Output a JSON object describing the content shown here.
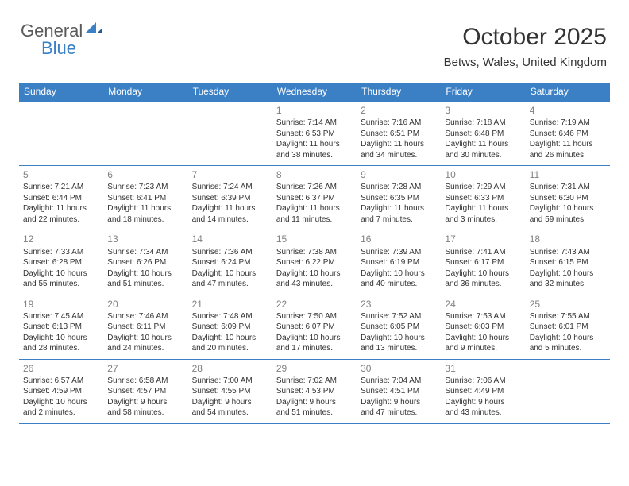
{
  "logo": {
    "word1": "General",
    "word2": "Blue"
  },
  "header": {
    "title": "October 2025",
    "location": "Betws, Wales, United Kingdom"
  },
  "calendar": {
    "header_bg": "#3b7fc4",
    "border_color": "#3b7fc4",
    "day_headers": [
      "Sunday",
      "Monday",
      "Tuesday",
      "Wednesday",
      "Thursday",
      "Friday",
      "Saturday"
    ],
    "weeks": [
      [
        null,
        null,
        null,
        {
          "num": "1",
          "sunrise": "Sunrise: 7:14 AM",
          "sunset": "Sunset: 6:53 PM",
          "day1": "Daylight: 11 hours",
          "day2": "and 38 minutes."
        },
        {
          "num": "2",
          "sunrise": "Sunrise: 7:16 AM",
          "sunset": "Sunset: 6:51 PM",
          "day1": "Daylight: 11 hours",
          "day2": "and 34 minutes."
        },
        {
          "num": "3",
          "sunrise": "Sunrise: 7:18 AM",
          "sunset": "Sunset: 6:48 PM",
          "day1": "Daylight: 11 hours",
          "day2": "and 30 minutes."
        },
        {
          "num": "4",
          "sunrise": "Sunrise: 7:19 AM",
          "sunset": "Sunset: 6:46 PM",
          "day1": "Daylight: 11 hours",
          "day2": "and 26 minutes."
        }
      ],
      [
        {
          "num": "5",
          "sunrise": "Sunrise: 7:21 AM",
          "sunset": "Sunset: 6:44 PM",
          "day1": "Daylight: 11 hours",
          "day2": "and 22 minutes."
        },
        {
          "num": "6",
          "sunrise": "Sunrise: 7:23 AM",
          "sunset": "Sunset: 6:41 PM",
          "day1": "Daylight: 11 hours",
          "day2": "and 18 minutes."
        },
        {
          "num": "7",
          "sunrise": "Sunrise: 7:24 AM",
          "sunset": "Sunset: 6:39 PM",
          "day1": "Daylight: 11 hours",
          "day2": "and 14 minutes."
        },
        {
          "num": "8",
          "sunrise": "Sunrise: 7:26 AM",
          "sunset": "Sunset: 6:37 PM",
          "day1": "Daylight: 11 hours",
          "day2": "and 11 minutes."
        },
        {
          "num": "9",
          "sunrise": "Sunrise: 7:28 AM",
          "sunset": "Sunset: 6:35 PM",
          "day1": "Daylight: 11 hours",
          "day2": "and 7 minutes."
        },
        {
          "num": "10",
          "sunrise": "Sunrise: 7:29 AM",
          "sunset": "Sunset: 6:33 PM",
          "day1": "Daylight: 11 hours",
          "day2": "and 3 minutes."
        },
        {
          "num": "11",
          "sunrise": "Sunrise: 7:31 AM",
          "sunset": "Sunset: 6:30 PM",
          "day1": "Daylight: 10 hours",
          "day2": "and 59 minutes."
        }
      ],
      [
        {
          "num": "12",
          "sunrise": "Sunrise: 7:33 AM",
          "sunset": "Sunset: 6:28 PM",
          "day1": "Daylight: 10 hours",
          "day2": "and 55 minutes."
        },
        {
          "num": "13",
          "sunrise": "Sunrise: 7:34 AM",
          "sunset": "Sunset: 6:26 PM",
          "day1": "Daylight: 10 hours",
          "day2": "and 51 minutes."
        },
        {
          "num": "14",
          "sunrise": "Sunrise: 7:36 AM",
          "sunset": "Sunset: 6:24 PM",
          "day1": "Daylight: 10 hours",
          "day2": "and 47 minutes."
        },
        {
          "num": "15",
          "sunrise": "Sunrise: 7:38 AM",
          "sunset": "Sunset: 6:22 PM",
          "day1": "Daylight: 10 hours",
          "day2": "and 43 minutes."
        },
        {
          "num": "16",
          "sunrise": "Sunrise: 7:39 AM",
          "sunset": "Sunset: 6:19 PM",
          "day1": "Daylight: 10 hours",
          "day2": "and 40 minutes."
        },
        {
          "num": "17",
          "sunrise": "Sunrise: 7:41 AM",
          "sunset": "Sunset: 6:17 PM",
          "day1": "Daylight: 10 hours",
          "day2": "and 36 minutes."
        },
        {
          "num": "18",
          "sunrise": "Sunrise: 7:43 AM",
          "sunset": "Sunset: 6:15 PM",
          "day1": "Daylight: 10 hours",
          "day2": "and 32 minutes."
        }
      ],
      [
        {
          "num": "19",
          "sunrise": "Sunrise: 7:45 AM",
          "sunset": "Sunset: 6:13 PM",
          "day1": "Daylight: 10 hours",
          "day2": "and 28 minutes."
        },
        {
          "num": "20",
          "sunrise": "Sunrise: 7:46 AM",
          "sunset": "Sunset: 6:11 PM",
          "day1": "Daylight: 10 hours",
          "day2": "and 24 minutes."
        },
        {
          "num": "21",
          "sunrise": "Sunrise: 7:48 AM",
          "sunset": "Sunset: 6:09 PM",
          "day1": "Daylight: 10 hours",
          "day2": "and 20 minutes."
        },
        {
          "num": "22",
          "sunrise": "Sunrise: 7:50 AM",
          "sunset": "Sunset: 6:07 PM",
          "day1": "Daylight: 10 hours",
          "day2": "and 17 minutes."
        },
        {
          "num": "23",
          "sunrise": "Sunrise: 7:52 AM",
          "sunset": "Sunset: 6:05 PM",
          "day1": "Daylight: 10 hours",
          "day2": "and 13 minutes."
        },
        {
          "num": "24",
          "sunrise": "Sunrise: 7:53 AM",
          "sunset": "Sunset: 6:03 PM",
          "day1": "Daylight: 10 hours",
          "day2": "and 9 minutes."
        },
        {
          "num": "25",
          "sunrise": "Sunrise: 7:55 AM",
          "sunset": "Sunset: 6:01 PM",
          "day1": "Daylight: 10 hours",
          "day2": "and 5 minutes."
        }
      ],
      [
        {
          "num": "26",
          "sunrise": "Sunrise: 6:57 AM",
          "sunset": "Sunset: 4:59 PM",
          "day1": "Daylight: 10 hours",
          "day2": "and 2 minutes."
        },
        {
          "num": "27",
          "sunrise": "Sunrise: 6:58 AM",
          "sunset": "Sunset: 4:57 PM",
          "day1": "Daylight: 9 hours",
          "day2": "and 58 minutes."
        },
        {
          "num": "28",
          "sunrise": "Sunrise: 7:00 AM",
          "sunset": "Sunset: 4:55 PM",
          "day1": "Daylight: 9 hours",
          "day2": "and 54 minutes."
        },
        {
          "num": "29",
          "sunrise": "Sunrise: 7:02 AM",
          "sunset": "Sunset: 4:53 PM",
          "day1": "Daylight: 9 hours",
          "day2": "and 51 minutes."
        },
        {
          "num": "30",
          "sunrise": "Sunrise: 7:04 AM",
          "sunset": "Sunset: 4:51 PM",
          "day1": "Daylight: 9 hours",
          "day2": "and 47 minutes."
        },
        {
          "num": "31",
          "sunrise": "Sunrise: 7:06 AM",
          "sunset": "Sunset: 4:49 PM",
          "day1": "Daylight: 9 hours",
          "day2": "and 43 minutes."
        },
        null
      ]
    ]
  }
}
